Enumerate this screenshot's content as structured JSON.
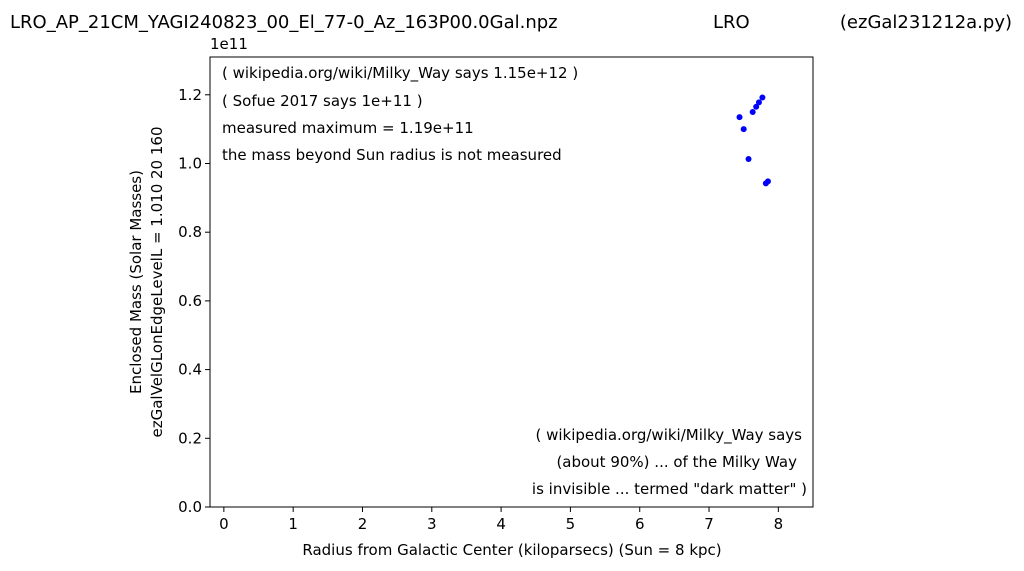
{
  "header": {
    "file_name": "LRO_AP_21CM_YAGI240823_00_El_77-0_Az_163P00.0Gal.npz",
    "site": "LRO",
    "script_name": "(ezGal231212a.py)"
  },
  "chart_data": {
    "type": "scatter",
    "xlabel": "Radius from Galactic Center (kiloparsecs)  (Sun = 8 kpc)",
    "ylabel": "Enclosed Mass (Solar Masses)",
    "ylabel2": "ezGalVelGLonEdgeLevelL = 1.010  20  160",
    "y_multiplier_label": "1e11",
    "xlim": [
      -0.2,
      8.5
    ],
    "ylim": [
      0.0,
      1.31
    ],
    "x_ticks": [
      0,
      1,
      2,
      3,
      4,
      5,
      6,
      7,
      8
    ],
    "x_tick_labels": [
      "0",
      "1",
      "2",
      "3",
      "4",
      "5",
      "6",
      "7",
      "8"
    ],
    "y_ticks": [
      0.0,
      0.2,
      0.4,
      0.6,
      0.8,
      1.0,
      1.2
    ],
    "y_tick_labels": [
      "0.0",
      "0.2",
      "0.4",
      "0.6",
      "0.8",
      "1.0",
      "1.2"
    ],
    "grid": false,
    "point_color": "#0000ff",
    "series": [
      {
        "points": [
          {
            "x": 7.44,
            "y": 1.135
          },
          {
            "x": 7.5,
            "y": 1.1
          },
          {
            "x": 7.57,
            "y": 1.013
          },
          {
            "x": 7.63,
            "y": 1.15
          },
          {
            "x": 7.68,
            "y": 1.165
          },
          {
            "x": 7.72,
            "y": 1.178
          },
          {
            "x": 7.77,
            "y": 1.192
          },
          {
            "x": 7.82,
            "y": 0.942
          },
          {
            "x": 7.85,
            "y": 0.948
          }
        ]
      }
    ],
    "annotations_top": [
      "( wikipedia.org/wiki/Milky_Way says 1.15e+12 )",
      "( Sofue 2017 says 1e+11 )",
      "measured maximum = 1.19e+11",
      "the mass beyond Sun radius is not measured"
    ],
    "annotations_bottom": [
      "( wikipedia.org/wiki/Milky_Way says",
      "(about 90%) ... of the Milky Way",
      "is invisible ... termed \"dark matter\" )"
    ]
  }
}
